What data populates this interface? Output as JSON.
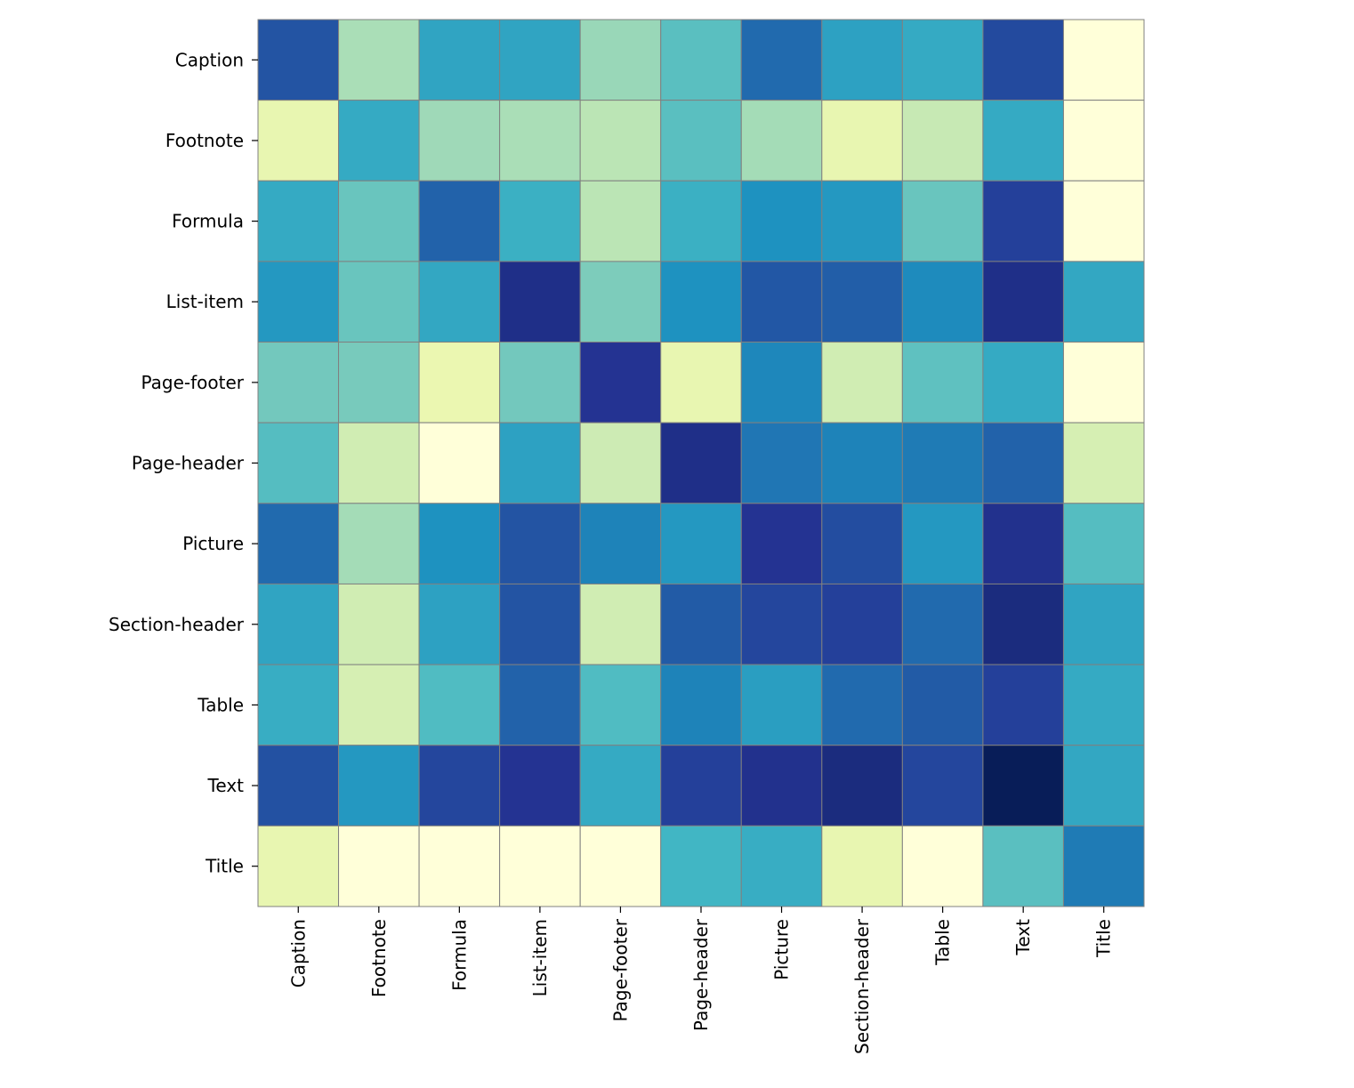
{
  "chart_data": {
    "type": "heatmap",
    "title": "",
    "xlabel": "",
    "ylabel": "",
    "colormap": "YlGnBu",
    "value_range": [
      0,
      1
    ],
    "colorbar": false,
    "rows": [
      "Caption",
      "Footnote",
      "Formula",
      "List-item",
      "Page-footer",
      "Page-header",
      "Picture",
      "Section-header",
      "Table",
      "Text",
      "Title"
    ],
    "columns": [
      "Caption",
      "Footnote",
      "Formula",
      "List-item",
      "Page-footer",
      "Page-header",
      "Picture",
      "Section-header",
      "Table",
      "Text",
      "Title"
    ],
    "values": [
      [
        0.78,
        0.3,
        0.56,
        0.56,
        0.33,
        0.45,
        0.72,
        0.57,
        0.54,
        0.81,
        0.0
      ],
      [
        0.14,
        0.54,
        0.32,
        0.3,
        0.27,
        0.45,
        0.31,
        0.14,
        0.25,
        0.54,
        0.0
      ],
      [
        0.54,
        0.42,
        0.74,
        0.52,
        0.27,
        0.52,
        0.62,
        0.6,
        0.42,
        0.84,
        0.0
      ],
      [
        0.6,
        0.42,
        0.55,
        0.9,
        0.38,
        0.62,
        0.77,
        0.75,
        0.64,
        0.9,
        0.55
      ],
      [
        0.4,
        0.39,
        0.13,
        0.4,
        0.88,
        0.14,
        0.65,
        0.22,
        0.44,
        0.54,
        0.0
      ],
      [
        0.46,
        0.22,
        0.0,
        0.57,
        0.23,
        0.9,
        0.69,
        0.66,
        0.68,
        0.74,
        0.2
      ],
      [
        0.72,
        0.31,
        0.62,
        0.78,
        0.66,
        0.6,
        0.88,
        0.8,
        0.6,
        0.89,
        0.46
      ],
      [
        0.56,
        0.22,
        0.57,
        0.78,
        0.22,
        0.76,
        0.82,
        0.84,
        0.72,
        0.92,
        0.56
      ],
      [
        0.53,
        0.2,
        0.47,
        0.74,
        0.47,
        0.66,
        0.58,
        0.72,
        0.76,
        0.84,
        0.54
      ],
      [
        0.79,
        0.6,
        0.82,
        0.88,
        0.54,
        0.84,
        0.89,
        0.92,
        0.82,
        1.0,
        0.55
      ],
      [
        0.14,
        0.0,
        0.0,
        0.0,
        0.0,
        0.5,
        0.53,
        0.14,
        0.0,
        0.45,
        0.68
      ]
    ]
  }
}
